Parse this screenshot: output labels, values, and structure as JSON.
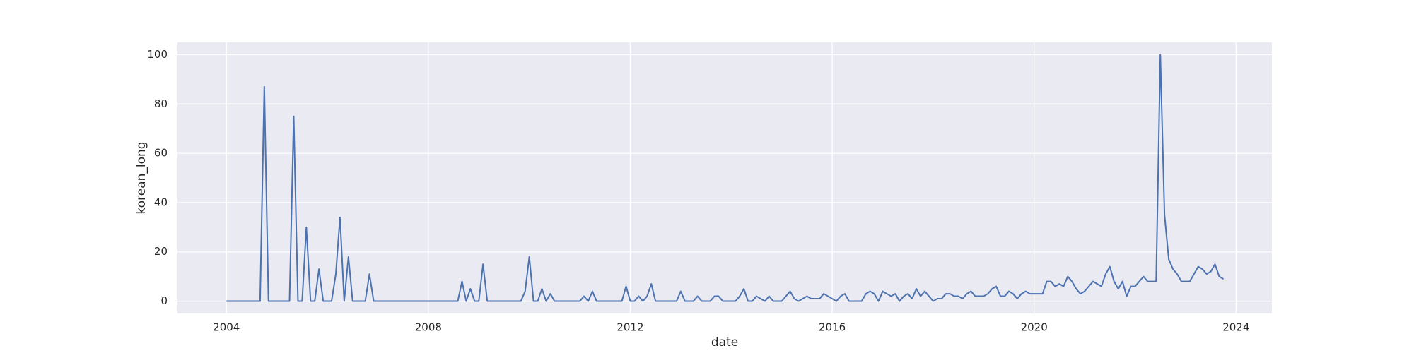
{
  "chart_data": {
    "type": "line",
    "x_label": "date",
    "y_label": "korean_long",
    "color": "#4c72b0",
    "grid": true,
    "xlim": [
      2003.03,
      2024.71
    ],
    "ylim": [
      -5,
      105
    ],
    "xticks": [
      2004,
      2008,
      2012,
      2016,
      2020,
      2024
    ],
    "yticks": [
      0,
      20,
      40,
      60,
      80,
      100
    ],
    "x": [
      2004,
      2004.083,
      2004.167,
      2004.25,
      2004.333,
      2004.417,
      2004.5,
      2004.583,
      2004.667,
      2004.75,
      2004.833,
      2004.917,
      2005,
      2005.083,
      2005.167,
      2005.25,
      2005.333,
      2005.417,
      2005.5,
      2005.583,
      2005.667,
      2005.75,
      2005.833,
      2005.917,
      2006,
      2006.083,
      2006.167,
      2006.25,
      2006.333,
      2006.417,
      2006.5,
      2006.583,
      2006.667,
      2006.75,
      2006.833,
      2006.917,
      2007,
      2007.083,
      2007.167,
      2007.25,
      2007.333,
      2007.417,
      2007.5,
      2007.583,
      2007.667,
      2007.75,
      2007.833,
      2007.917,
      2008,
      2008.083,
      2008.167,
      2008.25,
      2008.333,
      2008.417,
      2008.5,
      2008.583,
      2008.667,
      2008.75,
      2008.833,
      2008.917,
      2009,
      2009.083,
      2009.167,
      2009.25,
      2009.333,
      2009.417,
      2009.5,
      2009.583,
      2009.667,
      2009.75,
      2009.833,
      2009.917,
      2010,
      2010.083,
      2010.167,
      2010.25,
      2010.333,
      2010.417,
      2010.5,
      2010.583,
      2010.667,
      2010.75,
      2010.833,
      2010.917,
      2011,
      2011.083,
      2011.167,
      2011.25,
      2011.333,
      2011.417,
      2011.5,
      2011.583,
      2011.667,
      2011.75,
      2011.833,
      2011.917,
      2012,
      2012.083,
      2012.167,
      2012.25,
      2012.333,
      2012.417,
      2012.5,
      2012.583,
      2012.667,
      2012.75,
      2012.833,
      2012.917,
      2013,
      2013.083,
      2013.167,
      2013.25,
      2013.333,
      2013.417,
      2013.5,
      2013.583,
      2013.667,
      2013.75,
      2013.833,
      2013.917,
      2014,
      2014.083,
      2014.167,
      2014.25,
      2014.333,
      2014.417,
      2014.5,
      2014.583,
      2014.667,
      2014.75,
      2014.833,
      2014.917,
      2015,
      2015.083,
      2015.167,
      2015.25,
      2015.333,
      2015.417,
      2015.5,
      2015.583,
      2015.667,
      2015.75,
      2015.833,
      2015.917,
      2016,
      2016.083,
      2016.167,
      2016.25,
      2016.333,
      2016.417,
      2016.5,
      2016.583,
      2016.667,
      2016.75,
      2016.833,
      2016.917,
      2017,
      2017.083,
      2017.167,
      2017.25,
      2017.333,
      2017.417,
      2017.5,
      2017.583,
      2017.667,
      2017.75,
      2017.833,
      2017.917,
      2018,
      2018.083,
      2018.167,
      2018.25,
      2018.333,
      2018.417,
      2018.5,
      2018.583,
      2018.667,
      2018.75,
      2018.833,
      2018.917,
      2019,
      2019.083,
      2019.167,
      2019.25,
      2019.333,
      2019.417,
      2019.5,
      2019.583,
      2019.667,
      2019.75,
      2019.833,
      2019.917,
      2020,
      2020.083,
      2020.167,
      2020.25,
      2020.333,
      2020.417,
      2020.5,
      2020.583,
      2020.667,
      2020.75,
      2020.833,
      2020.917,
      2021,
      2021.083,
      2021.167,
      2021.25,
      2021.333,
      2021.417,
      2021.5,
      2021.583,
      2021.667,
      2021.75,
      2021.833,
      2021.917,
      2022,
      2022.083,
      2022.167,
      2022.25,
      2022.333,
      2022.417,
      2022.5,
      2022.583,
      2022.667,
      2022.75,
      2022.833,
      2022.917,
      2023,
      2023.083,
      2023.167,
      2023.25,
      2023.333,
      2023.417,
      2023.5,
      2023.583,
      2023.667,
      2023.75
    ],
    "values": [
      0,
      0,
      0,
      0,
      0,
      0,
      0,
      0,
      0,
      87,
      0,
      0,
      0,
      0,
      0,
      0,
      75,
      0,
      0,
      30,
      0,
      0,
      13,
      0,
      0,
      0,
      11,
      34,
      0,
      18,
      0,
      0,
      0,
      0,
      11,
      0,
      0,
      0,
      0,
      0,
      0,
      0,
      0,
      0,
      0,
      0,
      0,
      0,
      0,
      0,
      0,
      0,
      0,
      0,
      0,
      0,
      8,
      0,
      5,
      0,
      0,
      15,
      0,
      0,
      0,
      0,
      0,
      0,
      0,
      0,
      0,
      4,
      18,
      0,
      0,
      5,
      0,
      3,
      0,
      0,
      0,
      0,
      0,
      0,
      0,
      2,
      0,
      4,
      0,
      0,
      0,
      0,
      0,
      0,
      0,
      6,
      0,
      0,
      2,
      0,
      2,
      7,
      0,
      0,
      0,
      0,
      0,
      0,
      4,
      0,
      0,
      0,
      2,
      0,
      0,
      0,
      2,
      2,
      0,
      0,
      0,
      0,
      2,
      5,
      0,
      0,
      2,
      1,
      0,
      2,
      0,
      0,
      0,
      2,
      4,
      1,
      0,
      1,
      2,
      1,
      1,
      1,
      3,
      2,
      1,
      0,
      2,
      3,
      0,
      0,
      0,
      0,
      3,
      4,
      3,
      0,
      4,
      3,
      2,
      3,
      0,
      2,
      3,
      1,
      5,
      2,
      4,
      2,
      0,
      1,
      1,
      3,
      3,
      2,
      2,
      1,
      3,
      4,
      2,
      2,
      2,
      3,
      5,
      6,
      2,
      2,
      4,
      3,
      1,
      3,
      4,
      3,
      3,
      3,
      3,
      8,
      8,
      6,
      7,
      6,
      10,
      8,
      5,
      3,
      4,
      6,
      8,
      7,
      6,
      11,
      14,
      8,
      5,
      8,
      2,
      6,
      6,
      8,
      10,
      8,
      8,
      8,
      100,
      35,
      17,
      13,
      11,
      8,
      8,
      8,
      11,
      14,
      13,
      11,
      12,
      15,
      10,
      9
    ]
  }
}
